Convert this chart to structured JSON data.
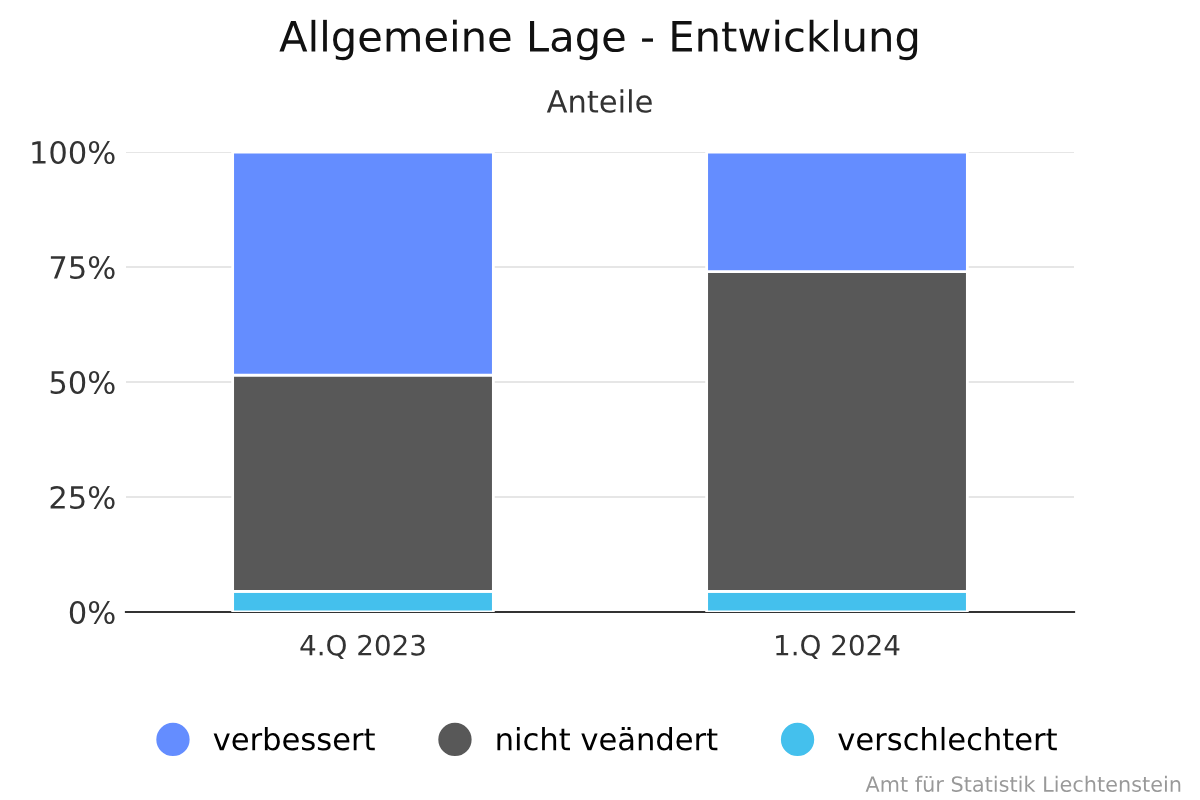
{
  "chart_data": {
    "type": "bar",
    "title": "Allgemeine Lage - Entwicklung",
    "subtitle": "Anteile",
    "categories": [
      "4.Q 2023",
      "1.Q 2024"
    ],
    "stacked": true,
    "series": [
      {
        "name": "verschlechtert",
        "color": "#44c0ed",
        "values": [
          4.5,
          4.5
        ]
      },
      {
        "name": "nicht veändert",
        "color": "#585858",
        "values": [
          47,
          69.5
        ]
      },
      {
        "name": "verbessert",
        "color": "#648dff",
        "values": [
          48.5,
          26
        ]
      }
    ],
    "ylim": [
      0,
      100
    ],
    "yticks": [
      {
        "value": 0,
        "label": "0%"
      },
      {
        "value": 25,
        "label": "25%"
      },
      {
        "value": 50,
        "label": "50%"
      },
      {
        "value": 75,
        "label": "75%"
      },
      {
        "value": 100,
        "label": "100%"
      }
    ],
    "grid": "y",
    "legend": "bottom",
    "annotations": [
      "Amt für Statistik Liechtenstein"
    ]
  }
}
